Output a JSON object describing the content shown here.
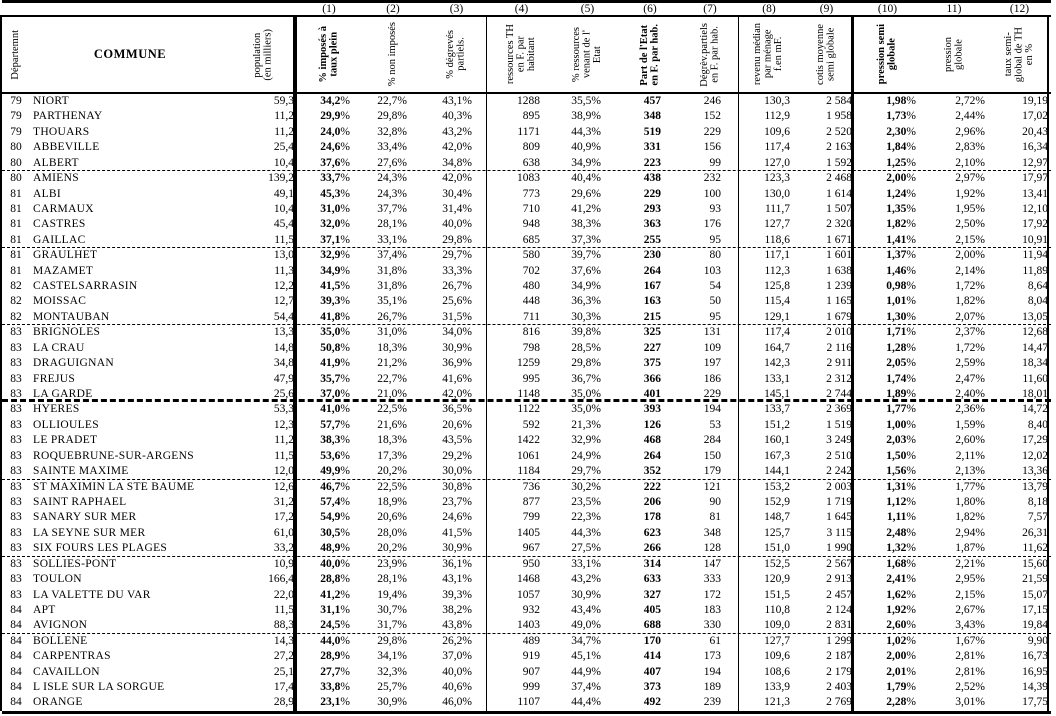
{
  "table": {
    "column_numbers": [
      "(1)",
      "(2)",
      "(3)",
      "(4)",
      "(5)",
      "(6)",
      "(7)",
      "(8)",
      "(9)",
      "(10)",
      "11)",
      "(12)"
    ],
    "headers": {
      "dept": "Départemnt",
      "commune": "COMMUNE",
      "population": "population\n(en milliers)",
      "c1": "% imposés à\ntaux plein",
      "c2": "% non imposés",
      "c3": "% dégrevés\npartiels.",
      "c4": "ressources TH\nen F. par\nhabitant",
      "c5": "% ressources\nvenant de l'\nEtat",
      "c6": "Part de l'Etat\nen F. par hab.",
      "c7": "Dégrèv.partiels\nen F. par hab.",
      "c8": "revenu médian\npar ménage\nf.en mF.",
      "c9": "cotis moyenne\nsemi globale",
      "c10": "pression semi\nglobale",
      "c11": "pression\nglobale",
      "c12": "taux semi-\nglobal de TH\nen %"
    },
    "rows": [
      [
        "79",
        "NIORT",
        "59,3",
        "34,2%",
        "22,7%",
        "43,1%",
        "1288",
        "35,5%",
        "457",
        "246",
        "130,3",
        "2 584",
        "1,98%",
        "2,72%",
        "19,19"
      ],
      [
        "79",
        "PARTHENAY",
        "11,2",
        "29,9%",
        "29,8%",
        "40,3%",
        "895",
        "38,9%",
        "348",
        "152",
        "112,9",
        "1 958",
        "1,73%",
        "2,44%",
        "17,02"
      ],
      [
        "79",
        "THOUARS",
        "11,2",
        "24,0%",
        "32,8%",
        "43,2%",
        "1171",
        "44,3%",
        "519",
        "229",
        "109,6",
        "2 520",
        "2,30%",
        "2,96%",
        "20,43"
      ],
      [
        "80",
        "ABBEVILLE",
        "25,4",
        "24,6%",
        "33,4%",
        "42,0%",
        "809",
        "40,9%",
        "331",
        "156",
        "117,4",
        "2 163",
        "1,84%",
        "2,83%",
        "16,34"
      ],
      [
        "80",
        "ALBERT",
        "10,4",
        "37,6%",
        "27,6%",
        "34,8%",
        "638",
        "34,9%",
        "223",
        "99",
        "127,0",
        "1 592",
        "1,25%",
        "2,10%",
        "12,97"
      ],
      [
        "80",
        "AMIENS",
        "139,2",
        "33,7%",
        "24,3%",
        "42,0%",
        "1083",
        "40,4%",
        "438",
        "232",
        "123,3",
        "2 468",
        "2,00%",
        "2,97%",
        "17,97"
      ],
      [
        "81",
        "ALBI",
        "49,1",
        "45,3%",
        "24,3%",
        "30,4%",
        "773",
        "29,6%",
        "229",
        "100",
        "130,0",
        "1 614",
        "1,24%",
        "1,92%",
        "13,41"
      ],
      [
        "81",
        "CARMAUX",
        "10,4",
        "31,0%",
        "37,7%",
        "31,4%",
        "710",
        "41,2%",
        "293",
        "93",
        "111,7",
        "1 507",
        "1,35%",
        "1,95%",
        "12,10"
      ],
      [
        "81",
        "CASTRES",
        "45,4",
        "32,0%",
        "28,1%",
        "40,0%",
        "948",
        "38,3%",
        "363",
        "176",
        "127,7",
        "2 320",
        "1,82%",
        "2,50%",
        "17,92"
      ],
      [
        "81",
        "GAILLAC",
        "11,5",
        "37,1%",
        "33,1%",
        "29,8%",
        "685",
        "37,3%",
        "255",
        "95",
        "118,6",
        "1 671",
        "1,41%",
        "2,15%",
        "10,91"
      ],
      [
        "81",
        "GRAULHET",
        "13,0",
        "32,9%",
        "37,4%",
        "29,7%",
        "580",
        "39,7%",
        "230",
        "80",
        "117,1",
        "1 601",
        "1,37%",
        "2,00%",
        "11,94"
      ],
      [
        "81",
        "MAZAMET",
        "11,3",
        "34,9%",
        "31,8%",
        "33,3%",
        "702",
        "37,6%",
        "264",
        "103",
        "112,3",
        "1 638",
        "1,46%",
        "2,14%",
        "11,89"
      ],
      [
        "82",
        "CASTELSARRASIN",
        "12,2",
        "41,5%",
        "31,8%",
        "26,7%",
        "480",
        "34,9%",
        "167",
        "54",
        "125,8",
        "1 239",
        "0,98%",
        "1,72%",
        "8,64"
      ],
      [
        "82",
        "MOISSAC",
        "12,7",
        "39,3%",
        "35,1%",
        "25,6%",
        "448",
        "36,3%",
        "163",
        "50",
        "115,4",
        "1 165",
        "1,01%",
        "1,82%",
        "8,04"
      ],
      [
        "82",
        "MONTAUBAN",
        "54,4",
        "41,8%",
        "26,7%",
        "31,5%",
        "711",
        "30,3%",
        "215",
        "95",
        "129,1",
        "1 679",
        "1,30%",
        "2,07%",
        "13,05"
      ],
      [
        "83",
        "BRIGNOLES",
        "13,3",
        "35,0%",
        "31,0%",
        "34,0%",
        "816",
        "39,8%",
        "325",
        "131",
        "117,4",
        "2 010",
        "1,71%",
        "2,37%",
        "12,68"
      ],
      [
        "83",
        "LA CRAU",
        "14,8",
        "50,8%",
        "18,3%",
        "30,9%",
        "798",
        "28,5%",
        "227",
        "109",
        "164,7",
        "2 116",
        "1,28%",
        "1,72%",
        "14,47"
      ],
      [
        "83",
        "DRAGUIGNAN",
        "34,8",
        "41,9%",
        "21,2%",
        "36,9%",
        "1259",
        "29,8%",
        "375",
        "197",
        "142,3",
        "2 911",
        "2,05%",
        "2,59%",
        "18,34"
      ],
      [
        "83",
        "FREJUS",
        "47,9",
        "35,7%",
        "22,7%",
        "41,6%",
        "995",
        "36,7%",
        "366",
        "186",
        "133,1",
        "2 312",
        "1,74%",
        "2,47%",
        "11,60"
      ],
      [
        "83",
        "LA GARDE",
        "25,6",
        "37,0%",
        "21,0%",
        "42,0%",
        "1148",
        "35,0%",
        "401",
        "229",
        "145,1",
        "2 744",
        "1,89%",
        "2,40%",
        "18,01"
      ],
      [
        "83",
        "HYERES",
        "53,3",
        "41,0%",
        "22,5%",
        "36,5%",
        "1122",
        "35,0%",
        "393",
        "194",
        "133,7",
        "2 369",
        "1,77%",
        "2,36%",
        "14,72"
      ],
      [
        "83",
        "OLLIOULES",
        "12,3",
        "57,7%",
        "21,6%",
        "20,6%",
        "592",
        "21,3%",
        "126",
        "53",
        "151,2",
        "1 519",
        "1,00%",
        "1,59%",
        "8,40"
      ],
      [
        "83",
        "LE PRADET",
        "11,2",
        "38,3%",
        "18,3%",
        "43,5%",
        "1422",
        "32,9%",
        "468",
        "284",
        "160,1",
        "3 249",
        "2,03%",
        "2,60%",
        "17,29"
      ],
      [
        "83",
        "ROQUEBRUNE-SUR-ARGENS",
        "11,5",
        "53,6%",
        "17,3%",
        "29,2%",
        "1061",
        "24,9%",
        "264",
        "150",
        "167,3",
        "2 510",
        "1,50%",
        "2,11%",
        "12,02"
      ],
      [
        "83",
        "SAINTE MAXIME",
        "12,0",
        "49,9%",
        "20,2%",
        "30,0%",
        "1184",
        "29,7%",
        "352",
        "179",
        "144,1",
        "2 242",
        "1,56%",
        "2,13%",
        "13,36"
      ],
      [
        "83",
        "ST MAXIMIN LA STE BAUME",
        "12,6",
        "46,7%",
        "22,5%",
        "30,8%",
        "736",
        "30,2%",
        "222",
        "121",
        "153,2",
        "2 003",
        "1,31%",
        "1,77%",
        "13,79"
      ],
      [
        "83",
        "SAINT RAPHAEL",
        "31,2",
        "57,4%",
        "18,9%",
        "23,7%",
        "877",
        "23,5%",
        "206",
        "90",
        "152,9",
        "1 719",
        "1,12%",
        "1,80%",
        "8,18"
      ],
      [
        "83",
        "SANARY SUR MER",
        "17,2",
        "54,9%",
        "20,6%",
        "24,6%",
        "799",
        "22,3%",
        "178",
        "81",
        "148,7",
        "1 645",
        "1,11%",
        "1,82%",
        "7,57"
      ],
      [
        "83",
        "LA SEYNE SUR MER",
        "61,0",
        "30,5%",
        "28,0%",
        "41,5%",
        "1405",
        "44,3%",
        "623",
        "348",
        "125,7",
        "3 115",
        "2,48%",
        "2,94%",
        "26,31"
      ],
      [
        "83",
        "SIX FOURS LES PLAGES",
        "33,2",
        "48,9%",
        "20,2%",
        "30,9%",
        "967",
        "27,5%",
        "266",
        "128",
        "151,0",
        "1 990",
        "1,32%",
        "1,87%",
        "11,62"
      ],
      [
        "83",
        "SOLLIES-PONT",
        "10,9",
        "40,0%",
        "23,9%",
        "36,1%",
        "950",
        "33,1%",
        "314",
        "147",
        "152,5",
        "2 567",
        "1,68%",
        "2,21%",
        "15,60"
      ],
      [
        "83",
        "TOULON",
        "166,4",
        "28,8%",
        "28,1%",
        "43,1%",
        "1468",
        "43,2%",
        "633",
        "333",
        "120,9",
        "2 913",
        "2,41%",
        "2,95%",
        "21,59"
      ],
      [
        "83",
        "LA VALETTE DU VAR",
        "22,0",
        "41,2%",
        "19,4%",
        "39,3%",
        "1057",
        "30,9%",
        "327",
        "172",
        "151,5",
        "2 457",
        "1,62%",
        "2,15%",
        "15,07"
      ],
      [
        "84",
        "APT",
        "11,5",
        "31,1%",
        "30,7%",
        "38,2%",
        "932",
        "43,4%",
        "405",
        "183",
        "110,8",
        "2 124",
        "1,92%",
        "2,67%",
        "17,15"
      ],
      [
        "84",
        "AVIGNON",
        "88,3",
        "24,5%",
        "31,7%",
        "43,8%",
        "1403",
        "49,0%",
        "688",
        "330",
        "109,0",
        "2 831",
        "2,60%",
        "3,43%",
        "19,84"
      ],
      [
        "84",
        "BOLLENE",
        "14,3",
        "44,0%",
        "29,8%",
        "26,2%",
        "489",
        "34,7%",
        "170",
        "61",
        "127,7",
        "1 299",
        "1,02%",
        "1,67%",
        "9,90"
      ],
      [
        "84",
        "CARPENTRAS",
        "27,2",
        "28,9%",
        "34,1%",
        "37,0%",
        "919",
        "45,1%",
        "414",
        "173",
        "109,6",
        "2 187",
        "2,00%",
        "2,81%",
        "16,73"
      ],
      [
        "84",
        "CAVAILLON",
        "25,1",
        "27,7%",
        "32,3%",
        "40,0%",
        "907",
        "44,9%",
        "407",
        "194",
        "108,6",
        "2 179",
        "2,01%",
        "2,81%",
        "16,95"
      ],
      [
        "84",
        "L ISLE SUR LA SORGUE",
        "17,4",
        "33,8%",
        "25,7%",
        "40,6%",
        "999",
        "37,4%",
        "373",
        "189",
        "133,9",
        "2 403",
        "1,79%",
        "2,52%",
        "14,39"
      ],
      [
        "84",
        "ORANGE",
        "28,9",
        "23,1%",
        "30,9%",
        "46,0%",
        "1107",
        "44,4%",
        "492",
        "239",
        "121,3",
        "2 769",
        "2,28%",
        "3,01%",
        "17,75"
      ]
    ],
    "dashed_after_rows": [
      5,
      10,
      15,
      25,
      30,
      35
    ],
    "thick_dashed_after_rows": [
      20
    ]
  }
}
